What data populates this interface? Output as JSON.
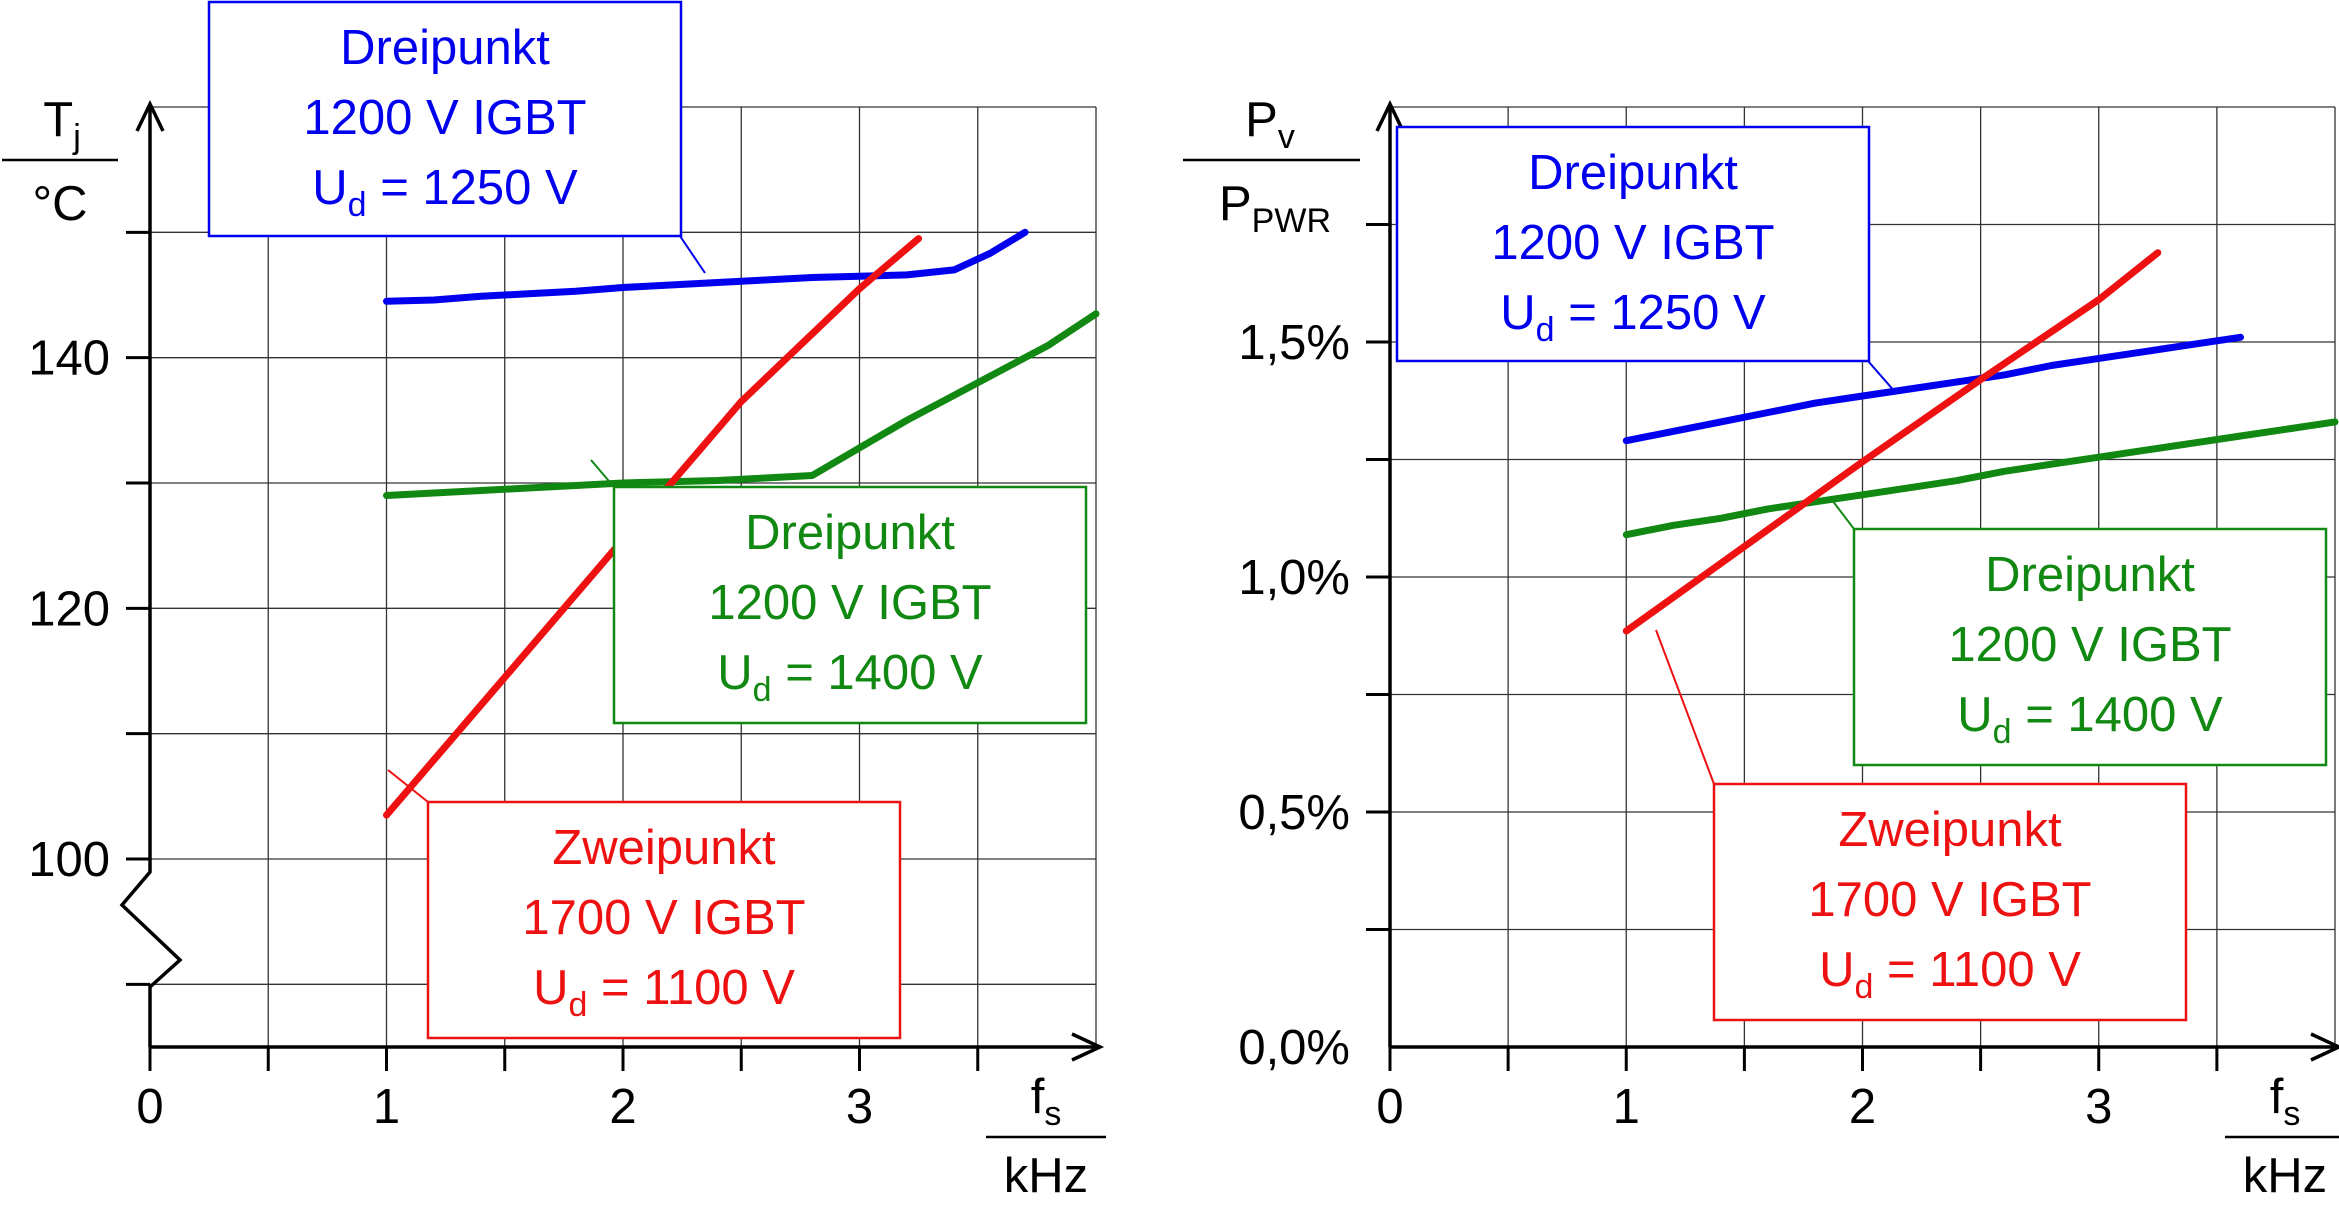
{
  "chart_data": [
    {
      "type": "line",
      "y_axis": {
        "label_main": "T",
        "label_sub": "j",
        "unit": "°C",
        "range": [
          85,
          160
        ],
        "ticks": [
          "100",
          "120",
          "140"
        ],
        "broken_axis": true
      },
      "x_axis": {
        "label_main": "f",
        "label_sub": "s",
        "unit": "kHz",
        "range": [
          0,
          4
        ],
        "ticks": [
          "0",
          "1",
          "2",
          "3"
        ]
      },
      "grid": true,
      "series": [
        {
          "color": "#0000ee",
          "label": {
            "line1": "Dreipunkt",
            "line2": "1200 V IGBT",
            "line3_main": "U",
            "line3_sub": "d",
            "line3_rest": " = 1250 V"
          },
          "points": [
            [
              1.0,
              144.5
            ],
            [
              1.2,
              144.6
            ],
            [
              1.4,
              144.9
            ],
            [
              1.6,
              145.1
            ],
            [
              1.8,
              145.3
            ],
            [
              2.0,
              145.6
            ],
            [
              2.2,
              145.8
            ],
            [
              2.4,
              146.0
            ],
            [
              2.6,
              146.2
            ],
            [
              2.8,
              146.4
            ],
            [
              3.0,
              146.5
            ],
            [
              3.2,
              146.6
            ],
            [
              3.4,
              147.0
            ],
            [
              3.55,
              148.3
            ],
            [
              3.7,
              150.0
            ]
          ]
        },
        {
          "color": "#118811",
          "label": {
            "line1": "Dreipunkt",
            "line2": "1200 V IGBT",
            "line3_main": "U",
            "line3_sub": "d",
            "line3_rest": " = 1400 V"
          },
          "points": [
            [
              1.0,
              129.0
            ],
            [
              1.2,
              129.2
            ],
            [
              1.4,
              129.4
            ],
            [
              1.6,
              129.6
            ],
            [
              1.8,
              129.8
            ],
            [
              2.0,
              130.0
            ],
            [
              2.2,
              130.1
            ],
            [
              2.4,
              130.2
            ],
            [
              2.6,
              130.4
            ],
            [
              2.8,
              130.6
            ],
            [
              3.0,
              132.8
            ],
            [
              3.2,
              135.0
            ],
            [
              3.4,
              137.0
            ],
            [
              3.6,
              139.0
            ],
            [
              3.8,
              141.0
            ],
            [
              4.0,
              143.5
            ]
          ]
        },
        {
          "color": "#ee1111",
          "label": {
            "line1": "Zweipunkt",
            "line2": "1700 V IGBT",
            "line3_main": "U",
            "line3_sub": "d",
            "line3_rest": " = 1100 V"
          },
          "points": [
            [
              1.0,
              103.5
            ],
            [
              1.5,
              114.5
            ],
            [
              2.0,
              125.5
            ],
            [
              2.5,
              136.5
            ],
            [
              3.0,
              145.5
            ],
            [
              3.25,
              149.5
            ]
          ]
        }
      ]
    },
    {
      "type": "line",
      "y_axis": {
        "label_main": "P",
        "label_sub": "v",
        "label_den_main": "P",
        "label_den_sub": "PWR",
        "range": [
          0,
          2.0
        ],
        "ticks": [
          "0,0%",
          "0,5%",
          "1,0%",
          "1,5%"
        ]
      },
      "x_axis": {
        "label_main": "f",
        "label_sub": "s",
        "unit": "kHz",
        "range": [
          0,
          4
        ],
        "ticks": [
          "0",
          "1",
          "2",
          "3"
        ]
      },
      "grid": true,
      "series": [
        {
          "color": "#0000ee",
          "label": {
            "line1": "Dreipunkt",
            "line2": "1200 V IGBT",
            "line3_main": "U",
            "line3_sub": "d",
            "line3_rest": " = 1250 V"
          },
          "points": [
            [
              1.0,
              1.29
            ],
            [
              1.2,
              1.31
            ],
            [
              1.4,
              1.33
            ],
            [
              1.6,
              1.35
            ],
            [
              1.8,
              1.37
            ],
            [
              2.0,
              1.385
            ],
            [
              2.2,
              1.4
            ],
            [
              2.4,
              1.415
            ],
            [
              2.6,
              1.43
            ],
            [
              2.8,
              1.45
            ],
            [
              3.0,
              1.465
            ],
            [
              3.2,
              1.48
            ],
            [
              3.4,
              1.495
            ],
            [
              3.6,
              1.51
            ]
          ]
        },
        {
          "color": "#118811",
          "label": {
            "line1": "Dreipunkt",
            "line2": "1200 V IGBT",
            "line3_main": "U",
            "line3_sub": "d",
            "line3_rest": " = 1400 V"
          },
          "points": [
            [
              1.0,
              1.09
            ],
            [
              1.2,
              1.11
            ],
            [
              1.4,
              1.125
            ],
            [
              1.6,
              1.145
            ],
            [
              1.8,
              1.16
            ],
            [
              2.0,
              1.175
            ],
            [
              2.2,
              1.19
            ],
            [
              2.4,
              1.205
            ],
            [
              2.6,
              1.225
            ],
            [
              2.8,
              1.24
            ],
            [
              3.0,
              1.255
            ],
            [
              3.2,
              1.27
            ],
            [
              3.4,
              1.285
            ],
            [
              3.6,
              1.3
            ],
            [
              3.8,
              1.315
            ],
            [
              4.0,
              1.33
            ]
          ]
        },
        {
          "color": "#ee1111",
          "label": {
            "line1": "Zweipunkt",
            "line2": "1700 V IGBT",
            "line3_main": "U",
            "line3_sub": "d",
            "line3_rest": " = 1100 V"
          },
          "points": [
            [
              1.0,
              0.885
            ],
            [
              1.5,
              1.065
            ],
            [
              2.0,
              1.245
            ],
            [
              2.5,
              1.42
            ],
            [
              3.0,
              1.59
            ],
            [
              3.25,
              1.69
            ]
          ]
        }
      ]
    }
  ]
}
